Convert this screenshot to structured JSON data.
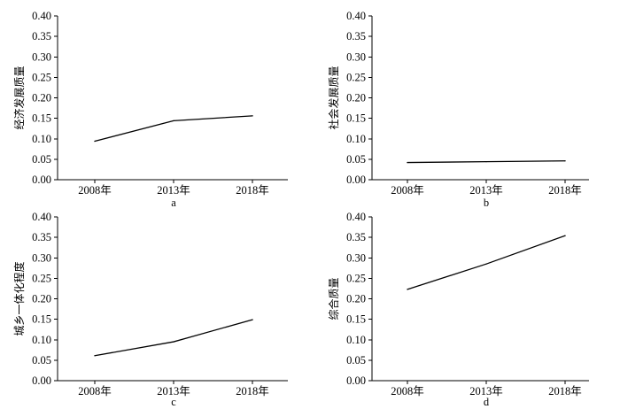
{
  "chart_data": [
    {
      "type": "line",
      "panel_label": "a",
      "ylabel": "经济发展质量",
      "xlabel": "",
      "categories": [
        "2008年",
        "2013年",
        "2018年"
      ],
      "series": [
        {
          "values": [
            0.094,
            0.144,
            0.156
          ]
        }
      ],
      "ylim": [
        0,
        0.4
      ],
      "yticks": [
        "0.00",
        "0.05",
        "0.10",
        "0.15",
        "0.20",
        "0.25",
        "0.30",
        "0.35",
        "0.40"
      ],
      "grid": false,
      "line_color": "#000000"
    },
    {
      "type": "line",
      "panel_label": "b",
      "ylabel": "社会发展质量",
      "xlabel": "",
      "categories": [
        "2008年",
        "2013年",
        "2018年"
      ],
      "series": [
        {
          "values": [
            0.042,
            0.044,
            0.046
          ]
        }
      ],
      "ylim": [
        0,
        0.4
      ],
      "yticks": [
        "0.00",
        "0.05",
        "0.10",
        "0.15",
        "0.20",
        "0.25",
        "0.30",
        "0.35",
        "0.40"
      ],
      "grid": false,
      "line_color": "#000000"
    },
    {
      "type": "line",
      "panel_label": "c",
      "ylabel": "城乡一体化程度",
      "xlabel": "",
      "categories": [
        "2008年",
        "2013年",
        "2018年"
      ],
      "series": [
        {
          "values": [
            0.061,
            0.095,
            0.149
          ]
        }
      ],
      "ylim": [
        0,
        0.4
      ],
      "yticks": [
        "0.00",
        "0.05",
        "0.10",
        "0.15",
        "0.20",
        "0.25",
        "0.30",
        "0.35",
        "0.40"
      ],
      "grid": false,
      "line_color": "#000000"
    },
    {
      "type": "line",
      "panel_label": "d",
      "ylabel": "综合质量",
      "xlabel": "",
      "categories": [
        "2008年",
        "2013年",
        "2018年"
      ],
      "series": [
        {
          "values": [
            0.223,
            0.285,
            0.354
          ]
        }
      ],
      "ylim": [
        0,
        0.4
      ],
      "yticks": [
        "0.00",
        "0.05",
        "0.10",
        "0.15",
        "0.20",
        "0.25",
        "0.30",
        "0.35",
        "0.40"
      ],
      "grid": false,
      "line_color": "#000000"
    }
  ]
}
